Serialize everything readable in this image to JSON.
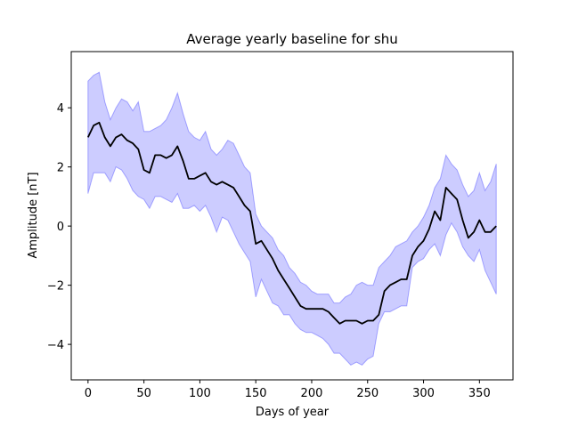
{
  "chart_data": {
    "type": "line",
    "title": "Average yearly baseline for shu",
    "xlabel": "Days of year",
    "ylabel": "Amplitude [nT]",
    "xlim": [
      -15,
      380
    ],
    "ylim": [
      -5.2,
      5.9
    ],
    "xticks": [
      0,
      50,
      100,
      150,
      200,
      250,
      300,
      350
    ],
    "yticks": [
      -4,
      -2,
      0,
      2,
      4
    ],
    "grid": false,
    "colors": {
      "line": "#000000",
      "band": "#0000ff",
      "band_opacity": 0.2,
      "band_edge_opacity": 0.3
    },
    "series": [
      {
        "role": "mean",
        "x": [
          0,
          5,
          10,
          15,
          20,
          25,
          30,
          35,
          40,
          45,
          50,
          55,
          60,
          65,
          70,
          75,
          80,
          85,
          90,
          95,
          100,
          105,
          110,
          115,
          120,
          125,
          130,
          135,
          140,
          145,
          150,
          155,
          160,
          165,
          170,
          175,
          180,
          185,
          190,
          195,
          200,
          205,
          210,
          215,
          220,
          225,
          230,
          235,
          240,
          245,
          250,
          255,
          260,
          265,
          270,
          275,
          280,
          285,
          290,
          295,
          300,
          305,
          310,
          315,
          320,
          325,
          330,
          335,
          340,
          345,
          350,
          355,
          360,
          365
        ],
        "y": [
          3.0,
          3.4,
          3.5,
          3.0,
          2.7,
          3.0,
          3.1,
          2.9,
          2.8,
          2.6,
          1.9,
          1.8,
          2.4,
          2.4,
          2.3,
          2.4,
          2.7,
          2.2,
          1.6,
          1.6,
          1.7,
          1.8,
          1.5,
          1.4,
          1.5,
          1.4,
          1.3,
          1.0,
          0.7,
          0.5,
          -0.6,
          -0.5,
          -0.8,
          -1.1,
          -1.5,
          -1.8,
          -2.1,
          -2.4,
          -2.7,
          -2.8,
          -2.8,
          -2.8,
          -2.8,
          -2.9,
          -3.1,
          -3.3,
          -3.2,
          -3.2,
          -3.2,
          -3.3,
          -3.2,
          -3.2,
          -3.0,
          -2.2,
          -2.0,
          -1.9,
          -1.8,
          -1.8,
          -1.0,
          -0.7,
          -0.5,
          -0.1,
          0.5,
          0.2,
          1.3,
          1.1,
          0.9,
          0.2,
          -0.4,
          -0.2,
          0.2,
          -0.2,
          -0.2,
          0.0
        ]
      },
      {
        "role": "upper",
        "x": [
          0,
          5,
          10,
          15,
          20,
          25,
          30,
          35,
          40,
          45,
          50,
          55,
          60,
          65,
          70,
          75,
          80,
          85,
          90,
          95,
          100,
          105,
          110,
          115,
          120,
          125,
          130,
          135,
          140,
          145,
          150,
          155,
          160,
          165,
          170,
          175,
          180,
          185,
          190,
          195,
          200,
          205,
          210,
          215,
          220,
          225,
          230,
          235,
          240,
          245,
          250,
          255,
          260,
          265,
          270,
          275,
          280,
          285,
          290,
          295,
          300,
          305,
          310,
          315,
          320,
          325,
          330,
          335,
          340,
          345,
          350,
          355,
          360,
          365
        ],
        "y": [
          4.9,
          5.1,
          5.2,
          4.2,
          3.6,
          4.0,
          4.3,
          4.2,
          3.9,
          4.2,
          3.2,
          3.2,
          3.3,
          3.4,
          3.6,
          4.0,
          4.5,
          3.8,
          3.2,
          3.0,
          2.9,
          3.2,
          2.6,
          2.4,
          2.6,
          2.9,
          2.8,
          2.4,
          2.0,
          1.8,
          0.4,
          0.0,
          -0.2,
          -0.4,
          -0.8,
          -1.0,
          -1.4,
          -1.6,
          -1.9,
          -2.0,
          -2.2,
          -2.3,
          -2.3,
          -2.3,
          -2.6,
          -2.6,
          -2.4,
          -2.3,
          -2.0,
          -1.9,
          -2.0,
          -2.0,
          -1.4,
          -1.2,
          -1.0,
          -0.7,
          -0.6,
          -0.5,
          -0.2,
          0.0,
          0.3,
          0.7,
          1.3,
          1.6,
          2.4,
          2.1,
          1.9,
          1.4,
          1.0,
          1.2,
          1.8,
          1.2,
          1.5,
          2.1
        ]
      },
      {
        "role": "lower",
        "x": [
          0,
          5,
          10,
          15,
          20,
          25,
          30,
          35,
          40,
          45,
          50,
          55,
          60,
          65,
          70,
          75,
          80,
          85,
          90,
          95,
          100,
          105,
          110,
          115,
          120,
          125,
          130,
          135,
          140,
          145,
          150,
          155,
          160,
          165,
          170,
          175,
          180,
          185,
          190,
          195,
          200,
          205,
          210,
          215,
          220,
          225,
          230,
          235,
          240,
          245,
          250,
          255,
          260,
          265,
          270,
          275,
          280,
          285,
          290,
          295,
          300,
          305,
          310,
          315,
          320,
          325,
          330,
          335,
          340,
          345,
          350,
          355,
          360,
          365
        ],
        "y": [
          1.1,
          1.8,
          1.8,
          1.8,
          1.5,
          2.0,
          1.9,
          1.6,
          1.2,
          1.0,
          0.9,
          0.6,
          1.0,
          1.0,
          0.9,
          0.8,
          1.1,
          0.6,
          0.6,
          0.7,
          0.5,
          0.7,
          0.3,
          -0.2,
          0.3,
          0.2,
          -0.2,
          -0.6,
          -0.9,
          -1.2,
          -2.4,
          -1.8,
          -2.2,
          -2.6,
          -2.7,
          -3.0,
          -3.0,
          -3.3,
          -3.5,
          -3.6,
          -3.6,
          -3.7,
          -3.8,
          -4.0,
          -4.3,
          -4.3,
          -4.5,
          -4.7,
          -4.6,
          -4.7,
          -4.5,
          -4.4,
          -3.3,
          -2.9,
          -2.9,
          -2.8,
          -2.7,
          -2.7,
          -1.4,
          -1.2,
          -1.1,
          -0.8,
          -0.6,
          -1.0,
          -0.3,
          0.1,
          -0.2,
          -0.7,
          -1.0,
          -1.2,
          -0.8,
          -1.5,
          -1.9,
          -2.3
        ]
      }
    ]
  }
}
